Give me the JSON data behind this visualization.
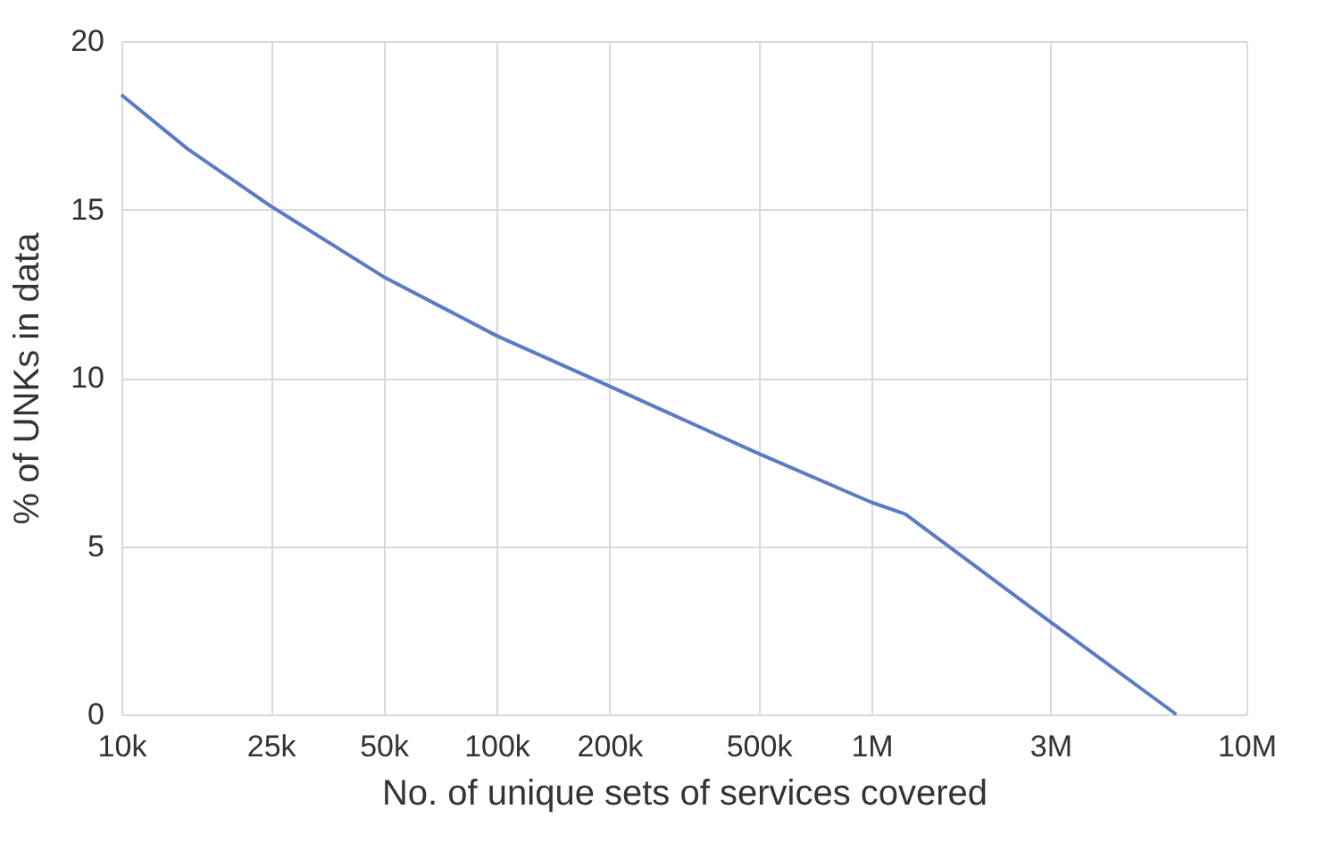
{
  "chart_data": {
    "type": "line",
    "xlabel": "No. of unique sets of services covered",
    "ylabel": "% of UNKs in data",
    "log": "x",
    "x": [
      10000,
      15000,
      25000,
      50000,
      100000,
      200000,
      500000,
      1000000,
      1230000,
      3000000,
      6500000
    ],
    "series": [
      {
        "color": "#5b7bc4",
        "values": [
          18.4,
          16.8,
          15.1,
          13.0,
          11.25,
          9.75,
          7.75,
          6.3,
          5.95,
          2.75,
          0
        ]
      }
    ],
    "xlim": [
      10000,
      10000000
    ],
    "xticks": [
      {
        "value": 10000,
        "label": "10k"
      },
      {
        "value": 25000,
        "label": "25k"
      },
      {
        "value": 50000,
        "label": "50k"
      },
      {
        "value": 100000,
        "label": "100k"
      },
      {
        "value": 200000,
        "label": "200k"
      },
      {
        "value": 500000,
        "label": "500k"
      },
      {
        "value": 1000000,
        "label": "1M"
      },
      {
        "value": 3000000,
        "label": "3M"
      },
      {
        "value": 10000000,
        "label": "10M"
      }
    ],
    "ylim": [
      0,
      20
    ],
    "yticks": [
      0,
      5,
      10,
      15,
      20
    ],
    "grid": true,
    "marker": "none",
    "line_style": "solid"
  }
}
